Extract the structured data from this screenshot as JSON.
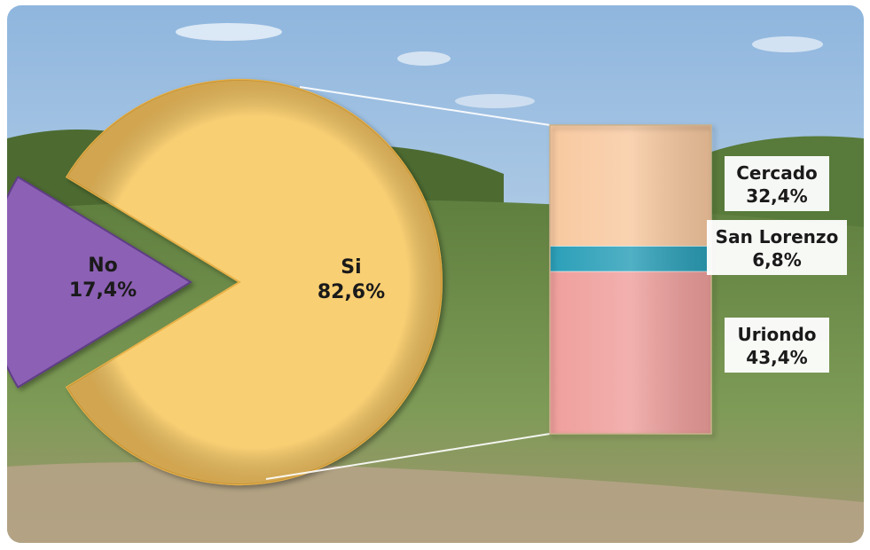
{
  "chart_data": [
    {
      "type": "pie",
      "categories": [
        "Si",
        "No"
      ],
      "values": [
        82.6,
        17.4
      ],
      "value_labels": [
        "82,6%",
        "17,4%"
      ],
      "colors": [
        "#f9cf73",
        "#8c61b4"
      ]
    },
    {
      "type": "bar",
      "stacked": true,
      "categories": [
        "Cercado",
        "San Lorenzo",
        "Uriondo"
      ],
      "values": [
        32.4,
        6.8,
        43.4
      ],
      "value_labels": [
        "32,4%",
        "6,8%",
        "43,4%"
      ],
      "colors": [
        "#f8c9a0",
        "#2a9fb8",
        "#ef9f9c"
      ]
    }
  ],
  "background": {
    "sky_color": "#9fc3e4",
    "field_color": "#6c8a4a",
    "soil_color": "#b9a78c"
  }
}
